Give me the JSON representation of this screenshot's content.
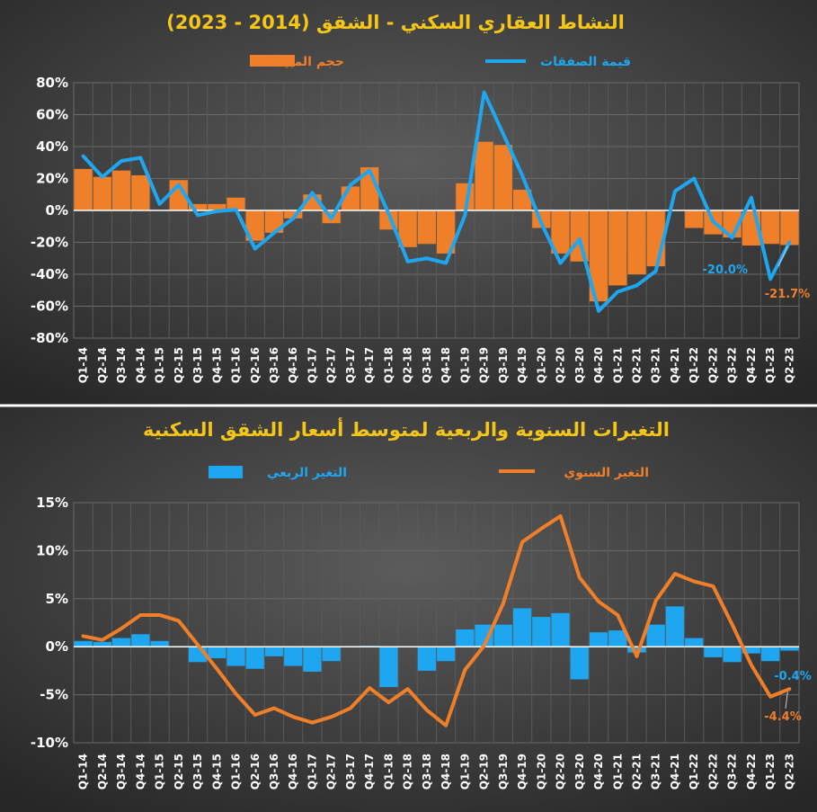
{
  "chart_data": [
    {
      "type": "bar+line",
      "title": "النشاط العقاري السكني - الشقق (2014 - 2023)",
      "legend_placement": "top",
      "categories": [
        "Q1-14",
        "Q2-14",
        "Q3-14",
        "Q4-14",
        "Q1-15",
        "Q2-15",
        "Q3-15",
        "Q4-15",
        "Q1-16",
        "Q2-16",
        "Q3-16",
        "Q4-16",
        "Q1-17",
        "Q2-17",
        "Q3-17",
        "Q4-17",
        "Q1-18",
        "Q2-18",
        "Q3-18",
        "Q4-18",
        "Q1-19",
        "Q2-19",
        "Q3-19",
        "Q4-19",
        "Q1-20",
        "Q2-20",
        "Q3-20",
        "Q4-20",
        "Q1-21",
        "Q2-21",
        "Q3-21",
        "Q4-21",
        "Q1-22",
        "Q2-22",
        "Q3-22",
        "Q4-22",
        "Q1-23",
        "Q2-23"
      ],
      "series": [
        {
          "name": "حجم المبيعات",
          "kind": "bar",
          "color": "#f07f2a",
          "values": [
            26,
            21,
            25,
            22,
            0,
            19,
            4,
            4,
            8,
            -19,
            -14,
            -5,
            10,
            -8,
            15,
            27,
            -12,
            -23,
            -21,
            -27,
            17,
            43,
            41,
            13,
            -11,
            -27,
            -32,
            -57,
            -47,
            -40,
            -35,
            0,
            -11,
            -15,
            -17,
            -22,
            -21,
            -21.7
          ]
        },
        {
          "name": "قيمة الصفقات",
          "kind": "line",
          "color": "#1ea7f0",
          "values": [
            34,
            21,
            31,
            33,
            4,
            16,
            -3,
            -0.5,
            0.5,
            -24,
            -14,
            -5,
            11,
            -5,
            16,
            25,
            -2,
            -32,
            -30,
            -33,
            -3,
            74,
            48,
            22,
            -8,
            -33,
            -18,
            -63,
            -51,
            -47,
            -38,
            12,
            20,
            -7,
            -17,
            8,
            -43,
            -20
          ]
        }
      ],
      "ylim": [
        -80,
        80
      ],
      "yticks": [
        "80%",
        "60%",
        "40%",
        "20%",
        "0%",
        "-20%",
        "-40%",
        "-60%",
        "-80%"
      ],
      "annotations": {
        "line_last": "-20.0%",
        "bar_last": "-21.7%"
      }
    },
    {
      "type": "bar+line",
      "title": "التغيرات السنوية والربعية لمتوسط أسعار الشقق السكنية",
      "legend_placement": "top",
      "categories": [
        "Q1-14",
        "Q2-14",
        "Q3-14",
        "Q4-14",
        "Q1-15",
        "Q2-15",
        "Q3-15",
        "Q4-15",
        "Q1-16",
        "Q2-16",
        "Q3-16",
        "Q4-16",
        "Q1-17",
        "Q2-17",
        "Q3-17",
        "Q4-17",
        "Q1-18",
        "Q2-18",
        "Q3-18",
        "Q4-18",
        "Q1-19",
        "Q2-19",
        "Q3-19",
        "Q4-19",
        "Q1-20",
        "Q2-20",
        "Q3-20",
        "Q4-20",
        "Q1-21",
        "Q2-21",
        "Q3-21",
        "Q4-21",
        "Q1-22",
        "Q2-22",
        "Q3-22",
        "Q4-22",
        "Q1-23",
        "Q2-23"
      ],
      "series": [
        {
          "name": "التغير الربعي",
          "kind": "bar",
          "color": "#1ea7f0",
          "values": [
            0.6,
            0.5,
            0.9,
            1.3,
            0.6,
            0,
            -1.6,
            -1.2,
            -2.0,
            -2.3,
            -1.0,
            -2.0,
            -2.6,
            -1.5,
            0,
            0.1,
            -4.2,
            0,
            -2.5,
            -1.5,
            1.8,
            2.3,
            2.3,
            4.0,
            3.1,
            3.5,
            -3.4,
            1.5,
            1.7,
            -0.6,
            2.3,
            4.2,
            0.9,
            -1.1,
            -1.6,
            -0.7,
            -1.5,
            -0.4
          ]
        },
        {
          "name": "التغير السنوي",
          "kind": "line",
          "color": "#f07f2a",
          "values": [
            1.1,
            0.7,
            1.9,
            3.3,
            3.3,
            2.7,
            0.2,
            -2.3,
            -4.9,
            -7.1,
            -6.4,
            -7.3,
            -7.9,
            -7.3,
            -6.4,
            -4.3,
            -5.8,
            -4.4,
            -6.6,
            -8.2,
            -2.4,
            0.1,
            4.5,
            10.9,
            12.3,
            13.6,
            7.2,
            4.7,
            3.3,
            -1.0,
            4.8,
            7.6,
            6.8,
            6.3,
            2.3,
            -1.9,
            -5.2,
            -4.4
          ]
        }
      ],
      "ylim": [
        -10,
        15
      ],
      "yticks": [
        "15%",
        "10%",
        "5%",
        "0%",
        "-5%",
        "-10%"
      ],
      "annotations": {
        "bar_last": "-0.4%",
        "line_last": "-4.4%"
      }
    }
  ]
}
